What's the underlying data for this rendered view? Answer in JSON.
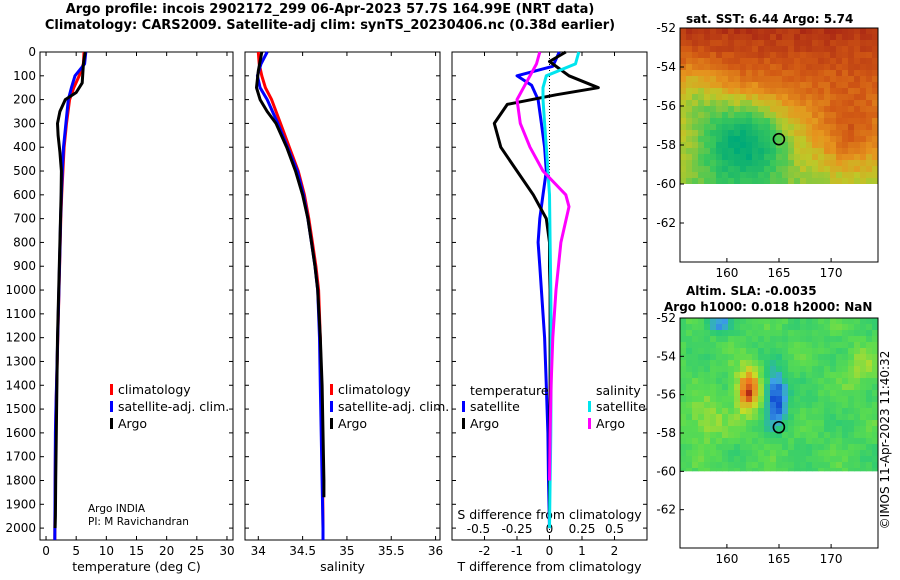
{
  "header": {
    "line1": "Argo profile: incois 2902172_299 06-Apr-2023 57.7S 164.99E (NRT data)",
    "line2": "Climatology: CARS2009. Satellite-adj clim: synTS_20230406.nc (0.38d earlier)"
  },
  "colors": {
    "climatology": "#ff0000",
    "satellite": "#0000ff",
    "argo": "#000000",
    "salinity_diff_clim": "#ff00ff",
    "salinity_diff_sat": "#00e5ee"
  },
  "pi_note": {
    "line1": "Argo INDIA",
    "line2": "PI: M Ravichandran"
  },
  "watermark": "©IMOS 11-Apr-2023 11:40:32",
  "chart_data": [
    {
      "type": "line",
      "id": "temperature",
      "xlabel": "temperature (deg C)",
      "ylabel": "",
      "xlim": [
        -1,
        31
      ],
      "ylim": [
        2050,
        0
      ],
      "xticks": [
        0,
        5,
        10,
        15,
        20,
        25,
        30
      ],
      "yticks": [
        0,
        100,
        200,
        300,
        400,
        500,
        600,
        700,
        800,
        900,
        1000,
        1100,
        1200,
        1300,
        1400,
        1500,
        1600,
        1700,
        1800,
        1900,
        2000
      ],
      "legend": [
        "climatology",
        "satellite-adj. clim.",
        "Argo"
      ],
      "series": [
        {
          "name": "climatology",
          "color": "#ff0000",
          "x": [
            6.3,
            6.2,
            5.5,
            4.6,
            3.9,
            3.4,
            3.0,
            2.8,
            2.6,
            2.45,
            2.35,
            2.25,
            2.15,
            2.05,
            1.95,
            1.85,
            1.75,
            1.65,
            1.58,
            1.52,
            1.45
          ],
          "y": [
            0,
            50,
            100,
            150,
            200,
            300,
            400,
            500,
            600,
            700,
            800,
            900,
            1000,
            1100,
            1200,
            1300,
            1400,
            1500,
            1600,
            1800,
            2050
          ]
        },
        {
          "name": "satellite-adj. clim.",
          "color": "#0000ff",
          "x": [
            6.6,
            6.4,
            4.8,
            4.2,
            3.7,
            3.3,
            2.9,
            2.7,
            2.55,
            2.42,
            2.33,
            2.23,
            2.13,
            2.03,
            1.93,
            1.83,
            1.73,
            1.63,
            1.56,
            1.5,
            1.45
          ],
          "y": [
            0,
            50,
            100,
            150,
            200,
            300,
            400,
            500,
            600,
            700,
            800,
            900,
            1000,
            1100,
            1200,
            1300,
            1400,
            1500,
            1600,
            1800,
            2050
          ]
        },
        {
          "name": "Argo",
          "color": "#000000",
          "x": [
            6.5,
            6.2,
            6.0,
            5.0,
            3.2,
            2.3,
            1.9,
            2.0,
            2.3,
            2.55,
            2.5,
            2.4,
            2.3,
            2.2,
            2.1,
            2.0,
            1.9,
            1.8,
            1.7,
            1.6,
            1.55,
            1.5
          ],
          "y": [
            0,
            50,
            130,
            170,
            200,
            250,
            300,
            350,
            420,
            500,
            600,
            700,
            800,
            900,
            1000,
            1100,
            1200,
            1400,
            1600,
            1800,
            1950,
            2000
          ]
        }
      ]
    },
    {
      "type": "line",
      "id": "salinity",
      "xlabel": "salinity",
      "ylabel": "",
      "xlim": [
        33.85,
        36.05
      ],
      "ylim": [
        2050,
        0
      ],
      "xticks": [
        34,
        34.5,
        35,
        35.5,
        36
      ],
      "xtick_labels": [
        "34",
        "34.5",
        "35",
        "35.5",
        "36"
      ],
      "legend": [
        "climatology",
        "satellite-adj. clim.",
        "Argo"
      ],
      "series": [
        {
          "name": "climatology",
          "color": "#ff0000",
          "x": [
            34.0,
            34.01,
            34.04,
            34.08,
            34.15,
            34.25,
            34.35,
            34.45,
            34.52,
            34.57,
            34.61,
            34.65,
            34.68,
            34.7,
            34.71,
            34.72,
            34.725,
            34.73,
            34.73
          ],
          "y": [
            0,
            50,
            100,
            150,
            200,
            300,
            400,
            500,
            600,
            700,
            800,
            900,
            1000,
            1200,
            1400,
            1600,
            1800,
            2000,
            2050
          ]
        },
        {
          "name": "satellite-adj. clim.",
          "color": "#0000ff",
          "x": [
            34.1,
            34.03,
            33.99,
            34.02,
            34.1,
            34.22,
            34.33,
            34.44,
            34.51,
            34.56,
            34.6,
            34.64,
            34.67,
            34.69,
            34.7,
            34.71,
            34.72,
            34.73,
            34.73
          ],
          "y": [
            0,
            50,
            100,
            150,
            200,
            300,
            400,
            500,
            600,
            700,
            800,
            900,
            1000,
            1200,
            1400,
            1600,
            1800,
            2000,
            2050
          ]
        },
        {
          "name": "Argo",
          "color": "#000000",
          "x": [
            34.04,
            34.0,
            33.98,
            34.02,
            34.1,
            34.2,
            34.32,
            34.42,
            34.5,
            34.56,
            34.6,
            34.64,
            34.67,
            34.7,
            34.72,
            34.73,
            34.74,
            34.74
          ],
          "y": [
            0,
            80,
            150,
            200,
            250,
            300,
            400,
            500,
            600,
            700,
            800,
            900,
            1000,
            1200,
            1400,
            1600,
            1800,
            1870
          ]
        }
      ]
    },
    {
      "type": "line",
      "id": "difference",
      "xlabel": "T difference from climatology",
      "top_xlabel": "S difference from climatology",
      "xlim": [
        -3,
        3
      ],
      "ylim": [
        2050,
        0
      ],
      "xticks": [
        -2,
        -1,
        0,
        1,
        2
      ],
      "top_xticks": [
        -2,
        -1,
        0,
        1,
        2
      ],
      "top_xtick_labels": [
        "-0.5",
        "-0.25",
        "0",
        "0.25",
        "0.5"
      ],
      "legend_temperature_title": "temperature",
      "legend_salinity_title": "salinity",
      "legend_temperature": [
        "satellite",
        "Argo"
      ],
      "legend_salinity": [
        "satellite",
        "Argo"
      ],
      "series": [
        {
          "name": "T satellite",
          "color": "#0000ff",
          "x": [
            0.3,
            0.1,
            -1.0,
            -0.55,
            -0.35,
            -0.25,
            -0.15,
            -0.1,
            -0.2,
            -0.3,
            -0.35,
            -0.3,
            -0.25,
            -0.2,
            -0.15,
            -0.1,
            -0.05,
            -0.03,
            0.0
          ],
          "y": [
            0,
            60,
            100,
            140,
            200,
            300,
            400,
            500,
            600,
            700,
            800,
            900,
            1000,
            1100,
            1200,
            1400,
            1600,
            1800,
            2000
          ]
        },
        {
          "name": "T Argo",
          "color": "#000000",
          "x": [
            0.5,
            0.0,
            0.6,
            1.5,
            0.2,
            -1.3,
            -1.7,
            -1.5,
            -1.0,
            -0.5,
            -0.1,
            0.0,
            0.0,
            0.02,
            0.02,
            0.02,
            0.01,
            0.0,
            0.0
          ],
          "y": [
            0,
            40,
            100,
            150,
            180,
            220,
            300,
            400,
            500,
            600,
            700,
            800,
            900,
            1000,
            1200,
            1400,
            1600,
            1800,
            1950
          ]
        },
        {
          "name": "S satellite",
          "color": "#00e5ee",
          "x": [
            0.9,
            0.8,
            -0.1,
            -0.2,
            -0.2,
            -0.15,
            -0.1,
            -0.05,
            0.0,
            0.02,
            0.04,
            0.05,
            0.05,
            0.04,
            0.03,
            0.02,
            0.01,
            0.0
          ],
          "y": [
            0,
            50,
            100,
            150,
            200,
            300,
            400,
            500,
            600,
            800,
            1000,
            1200,
            1400,
            1600,
            1700,
            1800,
            1900,
            2000
          ]
        },
        {
          "name": "S Argo",
          "color": "#ff00ff",
          "x": [
            -0.3,
            -0.4,
            -0.6,
            -1.0,
            -0.9,
            -0.6,
            -0.2,
            0.5,
            0.6,
            0.35,
            0.2,
            0.1,
            0.05,
            0.02,
            0.0
          ],
          "y": [
            0,
            50,
            100,
            200,
            300,
            400,
            500,
            600,
            650,
            800,
            1000,
            1200,
            1400,
            1600,
            1800
          ]
        }
      ]
    },
    {
      "type": "heatmap",
      "id": "sst_map",
      "title": "sat. SST: 6.44 Argo: 5.74",
      "xticks": [
        160,
        165,
        170
      ],
      "yticks": [
        -52,
        -54,
        -56,
        -58,
        -60,
        -62
      ],
      "xlim": [
        155.5,
        174.5
      ],
      "ylim": [
        -64,
        -52
      ],
      "marker": {
        "lon": 164.99,
        "lat": -57.7
      }
    },
    {
      "type": "heatmap",
      "id": "sla_map",
      "title_line1": "Altim. SLA: -0.0035",
      "title_line2": "Argo h1000: 0.018 h2000: NaN",
      "xticks": [
        160,
        165,
        170
      ],
      "yticks": [
        -52,
        -54,
        -56,
        -58,
        -60,
        -62
      ],
      "xlim": [
        155.5,
        174.5
      ],
      "ylim": [
        -64,
        -52
      ],
      "marker": {
        "lon": 164.99,
        "lat": -57.7
      }
    }
  ]
}
